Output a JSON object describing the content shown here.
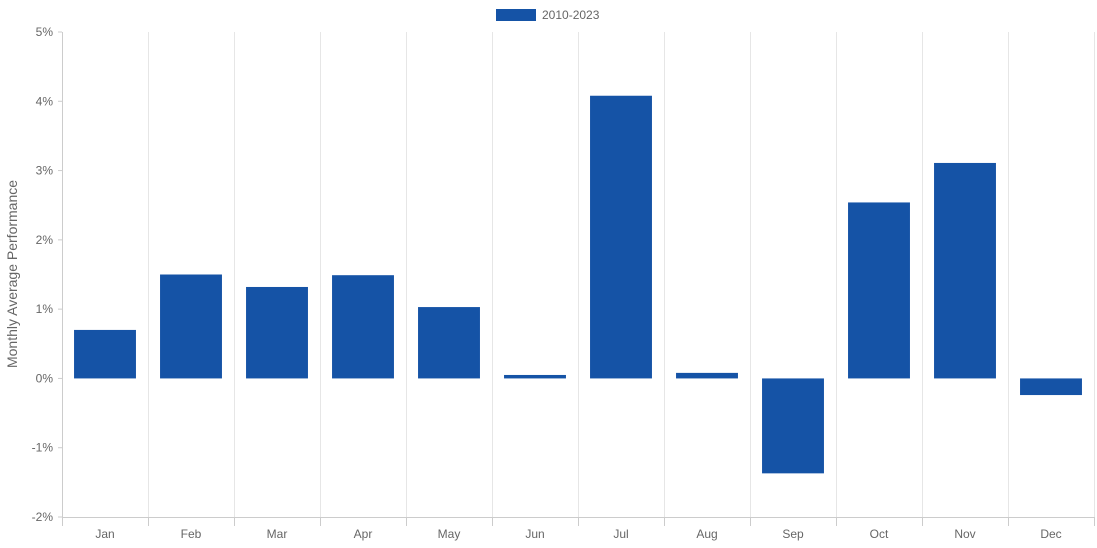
{
  "chart_data": {
    "type": "bar",
    "categories": [
      "Jan",
      "Feb",
      "Mar",
      "Apr",
      "May",
      "Jun",
      "Jul",
      "Aug",
      "Sep",
      "Oct",
      "Nov",
      "Dec"
    ],
    "series": [
      {
        "name": "2010-2023",
        "color": "#1553a6",
        "values": [
          0.7,
          1.5,
          1.32,
          1.49,
          1.03,
          0.05,
          4.08,
          0.08,
          -1.37,
          2.54,
          3.11,
          -0.24
        ]
      }
    ],
    "title": "",
    "xlabel": "",
    "ylabel": "Monthly Average Performance",
    "ylim": [
      -2,
      5
    ],
    "yticks": [
      "5%",
      "4%",
      "3%",
      "2%",
      "1%",
      "0%",
      "-1%",
      "-2%"
    ],
    "grid": true,
    "legend_position": "top-center"
  }
}
